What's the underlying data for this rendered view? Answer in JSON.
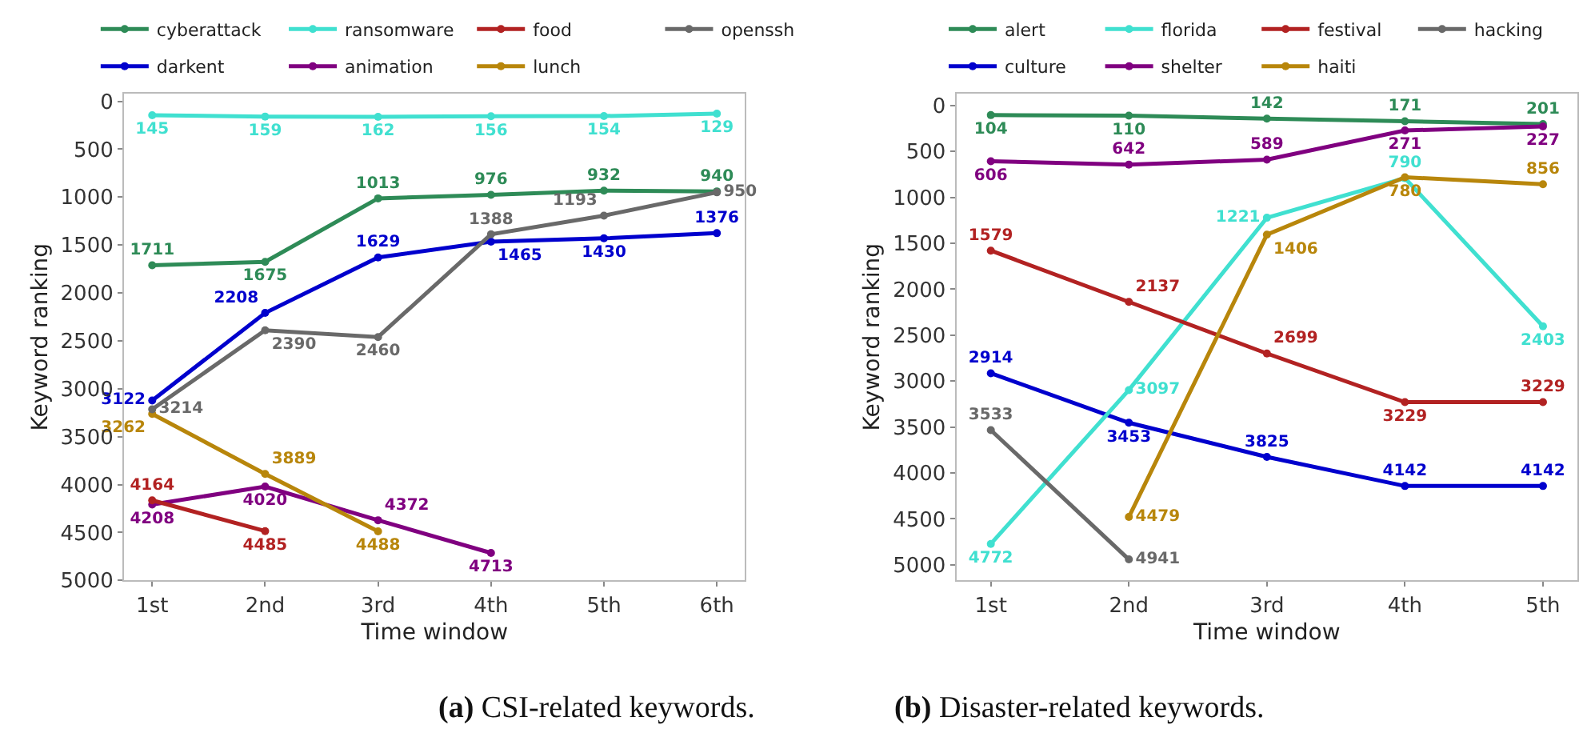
{
  "chart_data": [
    {
      "type": "line",
      "title": "(a) CSI-related keywords.",
      "xlabel": "Time window",
      "ylabel": "Keyword ranking",
      "categories": [
        "1st",
        "2nd",
        "3rd",
        "4th",
        "5th",
        "6th"
      ],
      "ylim": [
        5000,
        -80
      ],
      "yticks": [
        0,
        500,
        1000,
        1500,
        2000,
        2500,
        3000,
        3500,
        4000,
        4500,
        5000
      ],
      "marker": "circle",
      "line_style": "solid",
      "grid": false,
      "legend": "top",
      "data_labels": true,
      "series": [
        {
          "name": "cyberattack",
          "color": "#2e8b57",
          "values": [
            1711,
            1675,
            1013,
            976,
            932,
            940
          ]
        },
        {
          "name": "darkent",
          "color": "#0000cd",
          "values": [
            3122,
            2208,
            1629,
            1465,
            1430,
            1376
          ]
        },
        {
          "name": "ransomware",
          "color": "#40e0d0",
          "values": [
            145,
            159,
            162,
            156,
            154,
            129
          ]
        },
        {
          "name": "animation",
          "color": "#800080",
          "values": [
            4208,
            4020,
            4372,
            4713,
            null,
            null
          ]
        },
        {
          "name": "food",
          "color": "#b22222",
          "values": [
            4164,
            4485,
            null,
            null,
            null,
            null
          ]
        },
        {
          "name": "lunch",
          "color": "#b8860b",
          "values": [
            3262,
            3889,
            4488,
            null,
            null,
            null
          ]
        },
        {
          "name": "openssh",
          "color": "#696969",
          "values": [
            3214,
            2390,
            2460,
            1388,
            1193,
            950
          ]
        }
      ]
    },
    {
      "type": "line",
      "title": "(b) Disaster-related keywords.",
      "xlabel": "Time window",
      "ylabel": "Keyword ranking",
      "categories": [
        "1st",
        "2nd",
        "3rd",
        "4th",
        "5th"
      ],
      "ylim": [
        5170,
        -130
      ],
      "yticks": [
        0,
        500,
        1000,
        1500,
        2000,
        2500,
        3000,
        3500,
        4000,
        4500,
        5000
      ],
      "marker": "circle",
      "line_style": "solid",
      "grid": false,
      "legend": "top",
      "data_labels": true,
      "series": [
        {
          "name": "alert",
          "color": "#2e8b57",
          "values": [
            104,
            110,
            142,
            171,
            201
          ]
        },
        {
          "name": "culture",
          "color": "#0000cd",
          "values": [
            2914,
            3453,
            3825,
            4142,
            4142
          ]
        },
        {
          "name": "florida",
          "color": "#40e0d0",
          "values": [
            4772,
            3097,
            1221,
            790,
            2403
          ]
        },
        {
          "name": "shelter",
          "color": "#800080",
          "values": [
            606,
            642,
            589,
            271,
            227
          ]
        },
        {
          "name": "festival",
          "color": "#b22222",
          "values": [
            1579,
            2137,
            2699,
            3229,
            3229
          ]
        },
        {
          "name": "haiti",
          "color": "#b8860b",
          "values": [
            null,
            4479,
            1406,
            780,
            856
          ]
        },
        {
          "name": "hacking",
          "color": "#696969",
          "values": [
            3533,
            4941,
            null,
            null,
            null
          ]
        }
      ]
    }
  ]
}
